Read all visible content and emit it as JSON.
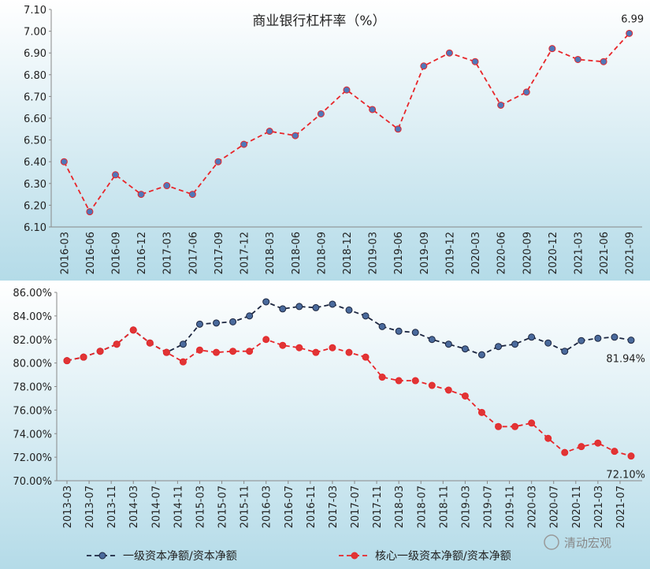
{
  "chart_data": [
    {
      "type": "line",
      "title": "商业银行杠杆率（%）",
      "categories": [
        "2016-03",
        "2016-06",
        "2016-09",
        "2016-12",
        "2017-03",
        "2017-06",
        "2017-09",
        "2017-12",
        "2018-03",
        "2018-06",
        "2018-09",
        "2018-12",
        "2019-03",
        "2019-06",
        "2019-09",
        "2019-12",
        "2020-03",
        "2020-06",
        "2020-09",
        "2020-12",
        "2021-03",
        "2021-06",
        "2021-09"
      ],
      "values": [
        6.4,
        6.17,
        6.34,
        6.25,
        6.29,
        6.25,
        6.4,
        6.48,
        6.54,
        6.52,
        6.62,
        6.73,
        6.64,
        6.55,
        6.84,
        6.9,
        6.86,
        6.66,
        6.72,
        6.92,
        6.87,
        6.86,
        6.99
      ],
      "color": "#e8262a",
      "marker_color": "#5077b8",
      "ylim": [
        6.1,
        7.1
      ],
      "yticks": [
        {
          "value": 6.1,
          "label": "6.10"
        },
        {
          "value": 6.2,
          "label": "6.20"
        },
        {
          "value": 6.3,
          "label": "6.30"
        },
        {
          "value": 6.4,
          "label": "6.40"
        },
        {
          "value": 6.5,
          "label": "6.50"
        },
        {
          "value": 6.6,
          "label": "6.60"
        },
        {
          "value": 6.7,
          "label": "6.70"
        },
        {
          "value": 6.8,
          "label": "6.80"
        },
        {
          "value": 6.9,
          "label": "6.90"
        },
        {
          "value": 7.0,
          "label": "7.00"
        },
        {
          "value": 7.1,
          "label": "7.10"
        }
      ]
    },
    {
      "type": "line",
      "x": [
        "2013-03",
        "2013-06",
        "2013-09",
        "2013-12",
        "2014-03",
        "2014-06",
        "2014-09",
        "2014-12",
        "2015-03",
        "2015-06",
        "2015-09",
        "2015-12",
        "2016-03",
        "2016-06",
        "2016-09",
        "2016-12",
        "2017-03",
        "2017-06",
        "2017-09",
        "2017-12",
        "2018-03",
        "2018-06",
        "2018-09",
        "2018-12",
        "2019-03",
        "2019-06",
        "2019-09",
        "2019-12",
        "2020-03",
        "2020-06",
        "2020-09",
        "2020-12",
        "2021-03",
        "2021-06",
        "2021-09"
      ],
      "xticks": [
        "2013-03",
        "2013-07",
        "2013-11",
        "2014-03",
        "2014-07",
        "2014-11",
        "2015-03",
        "2015-07",
        "2015-11",
        "2016-03",
        "2016-07",
        "2016-11",
        "2017-03",
        "2017-07",
        "2017-11",
        "2018-03",
        "2018-07",
        "2018-11",
        "2019-03",
        "2019-07",
        "2019-11",
        "2020-03",
        "2020-07",
        "2020-11",
        "2021-03",
        "2021-07"
      ],
      "ylim": [
        70,
        86
      ],
      "yticks": [
        {
          "value": 70,
          "label": "70.00%"
        },
        {
          "value": 72,
          "label": "72.00%"
        },
        {
          "value": 74,
          "label": "74.00%"
        },
        {
          "value": 76,
          "label": "76.00%"
        },
        {
          "value": 78,
          "label": "78.00%"
        },
        {
          "value": 80,
          "label": "80.00%"
        },
        {
          "value": 82,
          "label": "82.00%"
        },
        {
          "value": 84,
          "label": "84.00%"
        },
        {
          "value": 86,
          "label": "86.00%"
        }
      ],
      "series": [
        {
          "name": "一级资本净额/资本净额",
          "color": "#1c2640",
          "marker_color": "#4a6a9c",
          "values": [
            80.2,
            80.5,
            81.0,
            81.6,
            82.8,
            81.7,
            80.9,
            81.6,
            83.3,
            83.4,
            83.5,
            84.0,
            85.2,
            84.6,
            84.8,
            84.7,
            85.0,
            84.5,
            84.0,
            83.1,
            82.7,
            82.6,
            82.0,
            81.6,
            81.2,
            80.7,
            81.4,
            81.6,
            82.2,
            81.7,
            81.0,
            81.9,
            82.1,
            82.2,
            81.94
          ],
          "last_label": "81.94%"
        },
        {
          "name": "核心一级资本净额/资本净额",
          "color": "#e8262a",
          "marker_color": "#e03535",
          "values": [
            80.2,
            80.5,
            81.0,
            81.6,
            82.8,
            81.7,
            80.9,
            80.1,
            81.1,
            80.9,
            81.0,
            81.0,
            82.0,
            81.5,
            81.3,
            80.9,
            81.3,
            80.9,
            80.5,
            78.8,
            78.5,
            78.5,
            78.1,
            77.7,
            77.2,
            75.8,
            74.6,
            74.6,
            74.9,
            73.6,
            72.4,
            72.9,
            73.2,
            72.5,
            72.1
          ],
          "last_label": "72.10%"
        }
      ],
      "watermark": "清动宏观"
    }
  ]
}
